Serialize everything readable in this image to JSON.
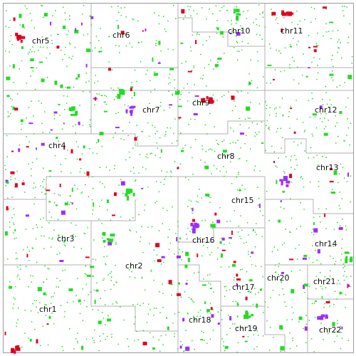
{
  "colors": {
    "background": "#ffffff",
    "border": "#b0b0b0",
    "label": "#111111",
    "green": "#22dd22",
    "red": "#e0001e",
    "purple": "#a02bff"
  },
  "map": {
    "regions": [
      {
        "id": "chr1",
        "label": "chr1"
      },
      {
        "id": "chr2",
        "label": "chr2"
      },
      {
        "id": "chr3",
        "label": "chr3"
      },
      {
        "id": "chr4",
        "label": "chr4"
      },
      {
        "id": "chr5",
        "label": "chr5"
      },
      {
        "id": "chr6",
        "label": "chr6"
      },
      {
        "id": "chr7",
        "label": "chr7"
      },
      {
        "id": "chr8",
        "label": "chr8"
      },
      {
        "id": "chr9",
        "label": "chr9"
      },
      {
        "id": "chr10",
        "label": "chr10"
      },
      {
        "id": "chr11",
        "label": "chr11"
      },
      {
        "id": "chr12",
        "label": "chr12"
      },
      {
        "id": "chr13",
        "label": "chr13"
      },
      {
        "id": "chr14",
        "label": "chr14"
      },
      {
        "id": "chr15",
        "label": "chr15"
      },
      {
        "id": "chr16",
        "label": "chr16"
      },
      {
        "id": "chr17",
        "label": "chr17"
      },
      {
        "id": "chr18",
        "label": "chr18"
      },
      {
        "id": "chr19",
        "label": "chr19"
      },
      {
        "id": "chr20",
        "label": "chr20"
      },
      {
        "id": "chr21",
        "label": "chr21"
      },
      {
        "id": "chr22",
        "label": "chr22"
      }
    ]
  }
}
